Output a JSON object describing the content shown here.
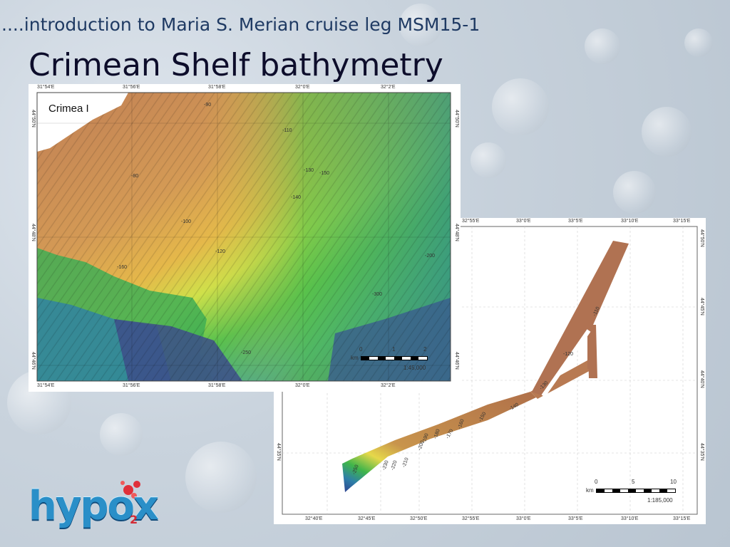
{
  "slide": {
    "subtitle": "....introduction to Maria S. Merian cruise leg MSM15-1",
    "title": "Crimean Shelf bathymetry"
  },
  "map1": {
    "top_ticks": [
      "31°54'E",
      "31°56'E",
      "31°58'E",
      "32°0'E",
      "32°2'E"
    ],
    "bottom_ticks": [
      "31°54'E",
      "31°56'E",
      "31°58'E",
      "32°0'E",
      "32°2'E"
    ],
    "left_ticks": [
      "44°50'N",
      "44°48'N",
      "44°46'N"
    ],
    "right_ticks": [
      "44°50'N",
      "44°48'N",
      "44°46'N"
    ],
    "land_label": "Crimea I",
    "scale_units": "km",
    "scale_marks": [
      "0",
      "1",
      "2"
    ],
    "scale_ratio": "1:45,000",
    "contours": [
      "-80",
      "-90",
      "-100",
      "-110",
      "-120",
      "-130",
      "-140",
      "-150",
      "-160",
      "-200",
      "-250",
      "-300"
    ]
  },
  "map2": {
    "top_ticks": [
      "32°55'E",
      "33°0'E",
      "33°5'E",
      "33°10'E",
      "33°15'E"
    ],
    "bottom_ticks": [
      "32°40'E",
      "32°45'E",
      "32°50'E",
      "32°55'E",
      "33°0'E",
      "33°5'E",
      "33°10'E",
      "33°15'E"
    ],
    "left_ticks": [
      "44°35'N"
    ],
    "right_ticks": [
      "44°50'N",
      "44°45'N",
      "44°40'N",
      "44°35'N"
    ],
    "scale_units": "km",
    "scale_marks": [
      "0",
      "5",
      "10"
    ],
    "scale_ratio": "1:185,000",
    "contours": [
      "-110",
      "-120",
      "-130",
      "-140",
      "-150",
      "-160",
      "-170",
      "-180",
      "-190",
      "-200",
      "-210",
      "-220",
      "-230",
      "-250"
    ]
  },
  "logo": {
    "text": "hypox",
    "subscript": "2"
  },
  "colors": {
    "title": "#0d0d2b",
    "subtitle": "#1f3a63",
    "shallow": "#b87a4d",
    "mid": "#e6c440",
    "green": "#3fb54a",
    "deep": "#2f3f8f"
  }
}
